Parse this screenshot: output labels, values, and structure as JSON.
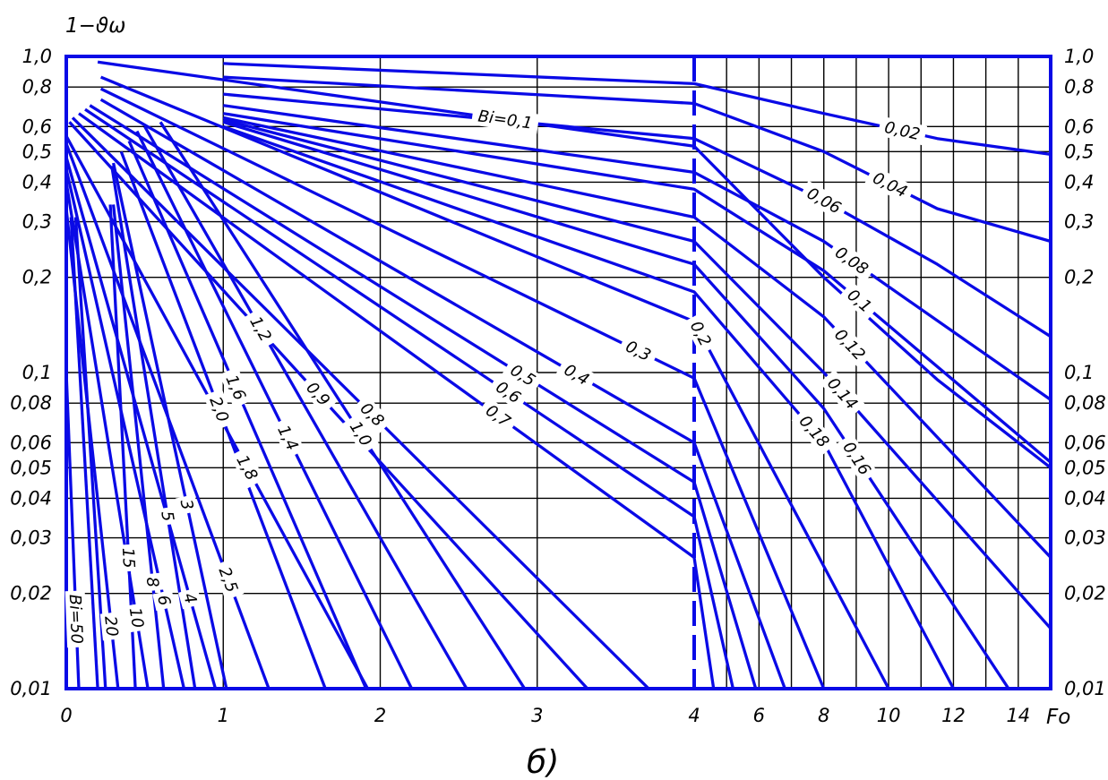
{
  "chart_data": {
    "type": "line",
    "title": "",
    "ylabel": "1−ϑω",
    "xlabel": "Fo",
    "caption": "б)",
    "y_scale": "log",
    "ylim": [
      0.01,
      1.0
    ],
    "grid": true,
    "colors": {
      "curve": "#0a0ae6",
      "grid": "#000000",
      "frame": "#0a0ae6"
    },
    "x_segments": [
      {
        "from": 0,
        "to": 4,
        "tick_labels": [
          "0",
          "1",
          "2",
          "3",
          "4"
        ]
      },
      {
        "from": 4,
        "to": 15,
        "tick_labels": [
          "6",
          "8",
          "10",
          "12",
          "14"
        ]
      }
    ],
    "y_tick_labels_left": [
      "1,0",
      "0,8",
      "0,6",
      "0,5",
      "0,4",
      "0,3",
      "0,2",
      "0,1",
      "0,08",
      "0,06",
      "0,05",
      "0,04",
      "0,03",
      "0,02",
      "0,01"
    ],
    "y_tick_labels_right": [
      "1,0",
      "0,8",
      "0,6",
      "0,5",
      "0,4",
      "0,3",
      "0,2",
      "0,1",
      "0,08",
      "0,06",
      "0,05",
      "0,04",
      "0,03",
      "0,02",
      "0,01"
    ],
    "series": [
      {
        "name": "0,02",
        "points": [
          [
            1.0,
            0.95
          ],
          [
            4,
            0.82
          ],
          [
            8,
            0.66
          ],
          [
            11.5,
            0.55
          ],
          [
            15,
            0.49
          ]
        ]
      },
      {
        "name": "0,04",
        "points": [
          [
            1.0,
            0.86
          ],
          [
            4,
            0.71
          ],
          [
            8,
            0.5
          ],
          [
            11.5,
            0.33
          ],
          [
            15,
            0.26
          ]
        ]
      },
      {
        "name": "0,06",
        "points": [
          [
            1.0,
            0.76
          ],
          [
            4,
            0.55
          ],
          [
            8,
            0.35
          ],
          [
            11.5,
            0.22
          ],
          [
            15,
            0.13
          ]
        ]
      },
      {
        "name": "Bi=0,1",
        "points": [
          [
            0.2,
            0.96
          ],
          [
            4,
            0.52
          ],
          [
            8,
            0.2
          ],
          [
            11.5,
            0.095
          ],
          [
            15,
            0.05
          ]
        ]
      },
      {
        "name": "0,08",
        "points": [
          [
            1.0,
            0.7
          ],
          [
            4,
            0.43
          ],
          [
            8,
            0.26
          ],
          [
            15,
            0.082
          ]
        ]
      },
      {
        "name": "0,1",
        "points": [
          [
            1.0,
            0.66
          ],
          [
            4,
            0.38
          ],
          [
            8,
            0.21
          ],
          [
            15,
            0.052
          ]
        ]
      },
      {
        "name": "0,12",
        "points": [
          [
            1.0,
            0.64
          ],
          [
            4,
            0.31
          ],
          [
            8,
            0.15
          ],
          [
            15,
            0.026
          ]
        ]
      },
      {
        "name": "0,14",
        "points": [
          [
            1.0,
            0.63
          ],
          [
            4,
            0.26
          ],
          [
            8,
            0.1
          ],
          [
            15,
            0.0155
          ]
        ]
      },
      {
        "name": "0,16",
        "points": [
          [
            1.0,
            0.62
          ],
          [
            4,
            0.22
          ],
          [
            8,
            0.077
          ],
          [
            13.7,
            0.01
          ]
        ]
      },
      {
        "name": "0,18",
        "points": [
          [
            1.0,
            0.6
          ],
          [
            4,
            0.18
          ],
          [
            8,
            0.06
          ],
          [
            12.0,
            0.01
          ]
        ]
      },
      {
        "name": "0,2",
        "points": [
          [
            0.22,
            0.86
          ],
          [
            4,
            0.145
          ],
          [
            10.0,
            0.01
          ]
        ]
      },
      {
        "name": "0,3",
        "points": [
          [
            0.22,
            0.79
          ],
          [
            4,
            0.096
          ],
          [
            8.0,
            0.01
          ]
        ]
      },
      {
        "name": "0,4",
        "points": [
          [
            0.22,
            0.73
          ],
          [
            4,
            0.06
          ],
          [
            6.8,
            0.01
          ]
        ]
      },
      {
        "name": "0,5",
        "points": [
          [
            0.15,
            0.7
          ],
          [
            4,
            0.045
          ],
          [
            5.9,
            0.01
          ]
        ]
      },
      {
        "name": "0,6",
        "points": [
          [
            0.12,
            0.68
          ],
          [
            4,
            0.035
          ],
          [
            5.2,
            0.01
          ]
        ]
      },
      {
        "name": "0,7",
        "points": [
          [
            0.08,
            0.66
          ],
          [
            4,
            0.026
          ],
          [
            4.6,
            0.01
          ]
        ]
      },
      {
        "name": "0,8",
        "points": [
          [
            0.04,
            0.64
          ],
          [
            3.71,
            0.01
          ]
        ]
      },
      {
        "name": "0,9",
        "points": [
          [
            0.02,
            0.62
          ],
          [
            3.32,
            0.01
          ]
        ]
      },
      {
        "name": "1,0",
        "points": [
          [
            0.6,
            0.62
          ],
          [
            2.92,
            0.01
          ]
        ]
      },
      {
        "name": "1,2",
        "points": [
          [
            0.5,
            0.6
          ],
          [
            2.55,
            0.01
          ]
        ]
      },
      {
        "name": "1,4",
        "points": [
          [
            0.45,
            0.58
          ],
          [
            2.2,
            0.01
          ]
        ]
      },
      {
        "name": "1,6",
        "points": [
          [
            0.4,
            0.54
          ],
          [
            1.91,
            0.01
          ]
        ]
      },
      {
        "name": "1,8",
        "points": [
          [
            0.0,
            0.56
          ],
          [
            1.92,
            0.01
          ]
        ]
      },
      {
        "name": "2,0",
        "points": [
          [
            0.35,
            0.5
          ],
          [
            1.65,
            0.01
          ]
        ]
      },
      {
        "name": "2,5",
        "points": [
          [
            0.0,
            0.53
          ],
          [
            1.29,
            0.01
          ]
        ]
      },
      {
        "name": "3",
        "points": [
          [
            0.3,
            0.46
          ],
          [
            1.02,
            0.01
          ]
        ]
      },
      {
        "name": "4",
        "points": [
          [
            0.0,
            0.48
          ],
          [
            0.95,
            0.01
          ]
        ]
      },
      {
        "name": "5",
        "points": [
          [
            0.29,
            0.45
          ],
          [
            0.82,
            0.01
          ]
        ]
      },
      {
        "name": "6",
        "points": [
          [
            0.0,
            0.44
          ],
          [
            0.75,
            0.01
          ]
        ]
      },
      {
        "name": "8",
        "points": [
          [
            0.3,
            0.34
          ],
          [
            0.62,
            0.01
          ]
        ]
      },
      {
        "name": "10",
        "points": [
          [
            0.0,
            0.4
          ],
          [
            0.52,
            0.01
          ]
        ]
      },
      {
        "name": "15",
        "points": [
          [
            0.28,
            0.34
          ],
          [
            0.44,
            0.01
          ]
        ]
      },
      {
        "name": "20",
        "points": [
          [
            0.0,
            0.33
          ],
          [
            0.33,
            0.01
          ]
        ]
      },
      {
        "name": "",
        "points": [
          [
            0.06,
            0.31
          ],
          [
            0.25,
            0.01
          ]
        ]
      },
      {
        "name": "",
        "points": [
          [
            0.03,
            0.31
          ],
          [
            0.2,
            0.01
          ]
        ]
      },
      {
        "name": "Bi=50",
        "points": [
          [
            0.0,
            0.1
          ],
          [
            0.08,
            0.01
          ]
        ]
      }
    ]
  }
}
